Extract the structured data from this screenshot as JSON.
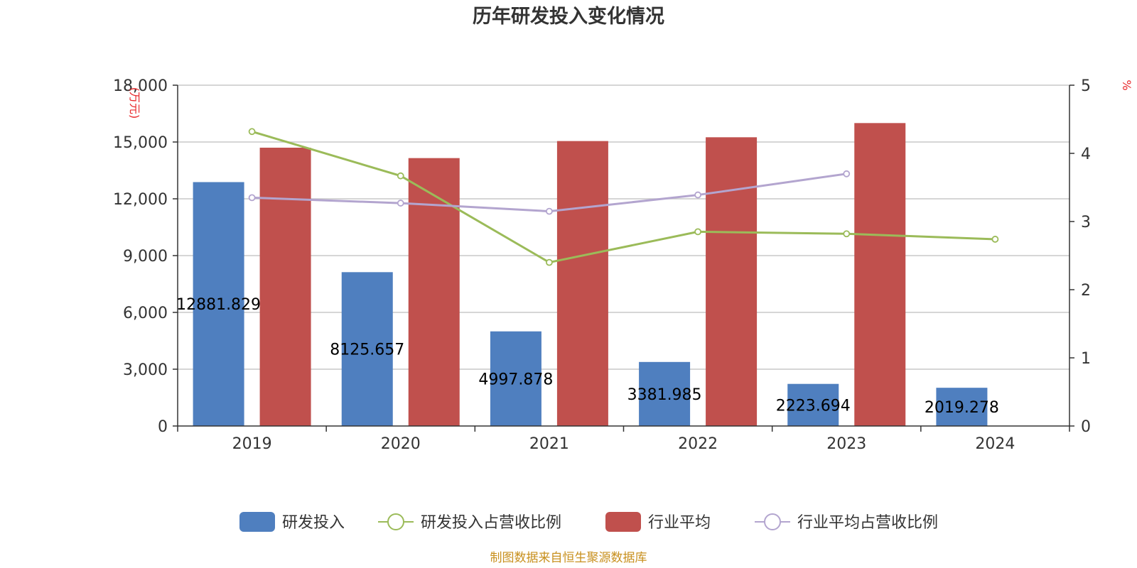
{
  "title": "历年研发投入变化情况",
  "source": "制图数据来自恒生聚源数据库",
  "colors": {
    "rd": "#4f7fbf",
    "industry": "#c0504d",
    "rd_ratio": "#9bbb59",
    "industry_ratio": "#b3a5cf"
  },
  "chart_data": {
    "type": "bar",
    "title": "历年研发投入变化情况",
    "categories": [
      "2019",
      "2020",
      "2021",
      "2022",
      "2023",
      "2024"
    ],
    "y_left": {
      "unit_label": "(万元)",
      "ylim": [
        0,
        18000
      ],
      "ticks": [
        "0",
        "3,000",
        "6,000",
        "9,000",
        "12,000",
        "15,000",
        "18,000"
      ]
    },
    "y_right": {
      "unit_label": "%",
      "ylim": [
        0,
        5
      ],
      "ticks": [
        "0",
        "1",
        "2",
        "3",
        "4",
        "5"
      ]
    },
    "grid": true,
    "legend_position": "bottom",
    "series": [
      {
        "name": "研发投入",
        "kind": "bar",
        "axis": "left",
        "values": [
          12881.829,
          8125.657,
          4997.878,
          3381.985,
          2223.694,
          2019.278
        ],
        "labels": [
          "12881.829",
          "8125.657",
          "4997.878",
          "3381.985",
          "2223.694",
          "2019.278"
        ]
      },
      {
        "name": "研发投入占营收比例",
        "kind": "line",
        "axis": "right",
        "values": [
          4.32,
          3.67,
          2.4,
          2.85,
          2.82,
          2.74
        ]
      },
      {
        "name": "行业平均",
        "kind": "bar",
        "axis": "left",
        "values": [
          14700,
          14150,
          15050,
          15250,
          16000,
          null
        ]
      },
      {
        "name": "行业平均占营收比例",
        "kind": "line",
        "axis": "right",
        "values": [
          3.35,
          3.27,
          3.15,
          3.39,
          3.7,
          null
        ]
      }
    ]
  }
}
